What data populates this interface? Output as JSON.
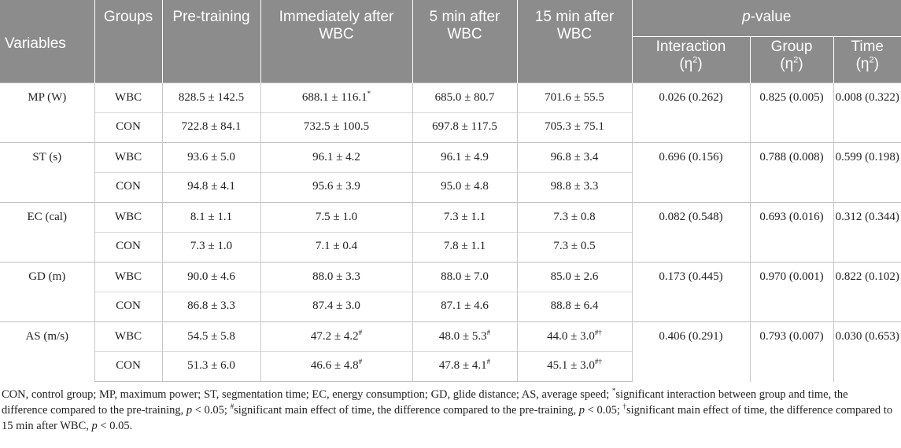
{
  "header": {
    "variables": "Variables",
    "groups": "Groups",
    "pre_training": "Pre-training",
    "immediately_after": "Immediately after WBC",
    "five_min_after": "5 min after WBC",
    "fifteen_min_after": "15 min after WBC",
    "p_value_italic": "p",
    "p_value_rest": "-value",
    "interaction": "Interaction",
    "group": "Group",
    "time": "Time",
    "eta_open": "(η",
    "eta_sup": "2",
    "eta_close": ")"
  },
  "rows": [
    {
      "variable": "MP (W)",
      "interaction": "0.026 (0.262)",
      "group": "0.825 (0.005)",
      "time": "0.008 (0.322)",
      "wbc": {
        "group": "WBC",
        "pre": "828.5 ± 142.5",
        "imm": "688.1 ± 116.1",
        "imm_mark": "*",
        "m5": "685.0 ± 80.7",
        "m5_mark": "",
        "m15": "701.6 ± 55.5",
        "m15_mark": ""
      },
      "con": {
        "group": "CON",
        "pre": "722.8 ± 84.1",
        "imm": "732.5 ± 100.5",
        "imm_mark": "",
        "m5": "697.8 ± 117.5",
        "m5_mark": "",
        "m15": "705.3 ± 75.1",
        "m15_mark": ""
      }
    },
    {
      "variable": "ST (s)",
      "interaction": "0.696 (0.156)",
      "group": "0.788 (0.008)",
      "time": "0.599 (0.198)",
      "wbc": {
        "group": "WBC",
        "pre": "93.6 ± 5.0",
        "imm": "96.1 ± 4.2",
        "imm_mark": "",
        "m5": "96.1 ± 4.9",
        "m5_mark": "",
        "m15": "96.8 ± 3.4",
        "m15_mark": ""
      },
      "con": {
        "group": "CON",
        "pre": "94.8 ± 4.1",
        "imm": "95.6 ± 3.9",
        "imm_mark": "",
        "m5": "95.0 ± 4.8",
        "m5_mark": "",
        "m15": "98.8 ± 3.3",
        "m15_mark": ""
      }
    },
    {
      "variable": "EC (cal)",
      "interaction": "0.082 (0.548)",
      "group": "0.693 (0.016)",
      "time": "0.312 (0.344)",
      "wbc": {
        "group": "WBC",
        "pre": "8.1 ± 1.1",
        "imm": "7.5 ± 1.0",
        "imm_mark": "",
        "m5": "7.3 ± 1.1",
        "m5_mark": "",
        "m15": "7.3 ± 0.8",
        "m15_mark": ""
      },
      "con": {
        "group": "CON",
        "pre": "7.3 ± 1.0",
        "imm": "7.1 ± 0.4",
        "imm_mark": "",
        "m5": "7.8 ± 1.1",
        "m5_mark": "",
        "m15": "7.3 ± 0.5",
        "m15_mark": ""
      }
    },
    {
      "variable": "GD (m)",
      "interaction": "0.173 (0.445)",
      "group": "0.970 (0.001)",
      "time": "0.822 (0.102)",
      "wbc": {
        "group": "WBC",
        "pre": "90.0 ± 4.6",
        "imm": "88.0 ± 3.3",
        "imm_mark": "",
        "m5": "88.0 ± 7.0",
        "m5_mark": "",
        "m15": "85.0 ± 2.6",
        "m15_mark": ""
      },
      "con": {
        "group": "CON",
        "pre": "86.8 ± 3.3",
        "imm": "87.4 ± 3.0",
        "imm_mark": "",
        "m5": "87.1 ± 4.6",
        "m5_mark": "",
        "m15": "88.8 ± 6.4",
        "m15_mark": ""
      }
    },
    {
      "variable": "AS (m/s)",
      "interaction": "0.406 (0.291)",
      "group": "0.793 (0.007)",
      "time": "0.030 (0.653)",
      "wbc": {
        "group": "WBC",
        "pre": "54.5 ± 5.8",
        "imm": "47.2 ± 4.2",
        "imm_mark": "#",
        "m5": "48.0 ± 5.3",
        "m5_mark": "#",
        "m15": "44.0 ± 3.0",
        "m15_mark": "#†"
      },
      "con": {
        "group": "CON",
        "pre": "51.3 ± 6.0",
        "imm": "46.6 ± 4.8",
        "imm_mark": "#",
        "m5": "47.8 ± 4.1",
        "m5_mark": "#",
        "m15": "45.1 ± 3.0",
        "m15_mark": "#†"
      }
    }
  ],
  "footnote": {
    "part1": "CON, control group; MP, maximum power; ST, segmentation time; EC, energy consumption; GD, glide distance; AS, average speed; ",
    "mark1": "*",
    "part2": "significant interaction between group and time, the difference compared to the pre-training, ",
    "p": "p",
    "lt": " < 0.05; ",
    "mark2": "#",
    "part3": "significant main effect of time, the difference compared to the pre-training, ",
    "mark3": "†",
    "part4": "significant main effect of time, the difference compared to 15 min after WBC, ",
    "end": " < 0.05."
  }
}
